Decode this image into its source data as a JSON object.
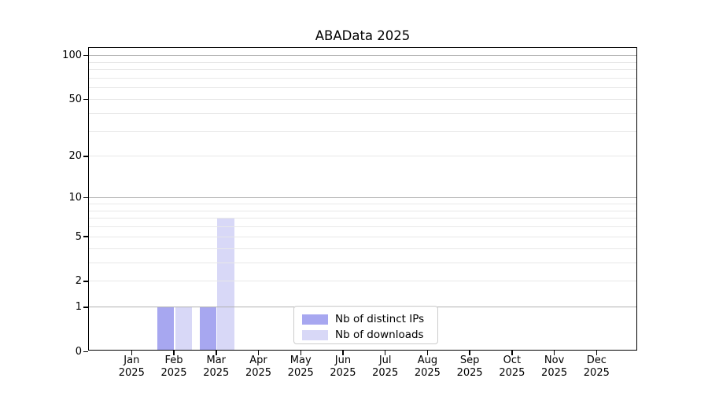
{
  "chart_data": {
    "type": "bar",
    "title": "ABAData 2025",
    "bar_layout": "grouped-pairs",
    "x_categories": [
      "Jan",
      "Feb",
      "Mar",
      "Apr",
      "May",
      "Jun",
      "Jul",
      "Aug",
      "Sep",
      "Oct",
      "Nov",
      "Dec"
    ],
    "x_year_label": "2025",
    "series": [
      {
        "name": "Nb of distinct IPs",
        "color": "#a7a7f0",
        "values": [
          0,
          1,
          1,
          0,
          0,
          0,
          0,
          0,
          0,
          0,
          0,
          0
        ]
      },
      {
        "name": "Nb of downloads",
        "color": "#d8d8f7",
        "values": [
          0,
          1,
          7,
          0,
          0,
          0,
          0,
          0,
          0,
          0,
          0,
          0
        ]
      }
    ],
    "y_axis": {
      "scale": "log1p",
      "range": [
        0,
        115
      ],
      "tick_labels": [
        0,
        1,
        2,
        5,
        10,
        20,
        50,
        100
      ],
      "major_gridlines": [
        1,
        10,
        100
      ],
      "minor_gridlines": [
        2,
        3,
        4,
        5,
        6,
        7,
        8,
        9,
        20,
        30,
        40,
        50,
        60,
        70,
        80,
        90
      ]
    },
    "legend": {
      "position": "lower-center",
      "entries": [
        "Nb of distinct IPs",
        "Nb of downloads"
      ]
    },
    "grid": true
  },
  "colors": {
    "background": "#ffffff",
    "spine": "#000000",
    "text": "#000000",
    "major_grid": "#b0b0b0",
    "minor_grid": "#e8e8e8",
    "legend_border": "#cccccc",
    "series_dark": "#a7a7f0",
    "series_light": "#d8d8f7"
  }
}
